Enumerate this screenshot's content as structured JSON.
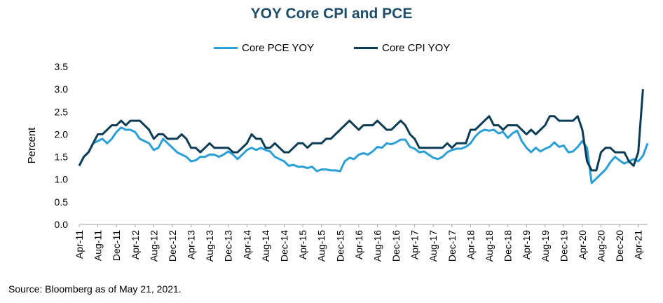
{
  "chart_data": {
    "type": "line",
    "title": "YOY Core CPI and PCE",
    "xlabel": "",
    "ylabel": "Percent",
    "ylim": [
      0.0,
      3.5
    ],
    "yticks": [
      "0.0",
      "0.5",
      "1.0",
      "1.5",
      "2.0",
      "2.5",
      "3.0",
      "3.5"
    ],
    "xtick_labels": [
      "Apr-11",
      "Aug-11",
      "Dec-11",
      "Apr-12",
      "Aug-12",
      "Dec-12",
      "Apr-13",
      "Aug-13",
      "Dec-13",
      "Apr-14",
      "Aug-14",
      "Dec-14",
      "Apr-15",
      "Aug-15",
      "Dec-15",
      "Apr-16",
      "Aug-16",
      "Dec-16",
      "Apr-17",
      "Aug-17",
      "Dec-17",
      "Apr-18",
      "Aug-18",
      "Dec-18",
      "Apr-19",
      "Aug-19",
      "Dec-19",
      "Apr-20",
      "Aug-20",
      "Dec-20",
      "Apr-21"
    ],
    "x_start": "Apr-11",
    "x_end": "Apr-21",
    "legend_position": "top-center",
    "grid": false,
    "series": [
      {
        "name": "Core PCE YOY",
        "color": "#2a9fd6",
        "values": [
          1.3,
          1.5,
          1.6,
          1.8,
          1.85,
          1.9,
          1.8,
          1.9,
          2.05,
          2.15,
          2.1,
          2.1,
          2.05,
          1.9,
          1.85,
          1.8,
          1.65,
          1.7,
          1.9,
          1.8,
          1.7,
          1.6,
          1.55,
          1.5,
          1.4,
          1.42,
          1.5,
          1.5,
          1.55,
          1.55,
          1.5,
          1.55,
          1.62,
          1.55,
          1.45,
          1.55,
          1.65,
          1.7,
          1.65,
          1.7,
          1.65,
          1.62,
          1.5,
          1.45,
          1.4,
          1.3,
          1.32,
          1.28,
          1.28,
          1.25,
          1.28,
          1.18,
          1.22,
          1.22,
          1.2,
          1.2,
          1.18,
          1.4,
          1.48,
          1.45,
          1.55,
          1.58,
          1.55,
          1.62,
          1.72,
          1.7,
          1.8,
          1.78,
          1.82,
          1.88,
          1.88,
          1.72,
          1.68,
          1.6,
          1.62,
          1.55,
          1.48,
          1.45,
          1.5,
          1.6,
          1.65,
          1.68,
          1.68,
          1.72,
          1.8,
          1.95,
          2.05,
          2.1,
          2.08,
          2.1,
          2.02,
          2.05,
          1.92,
          2.02,
          2.08,
          1.85,
          1.7,
          1.6,
          1.7,
          1.62,
          1.68,
          1.72,
          1.82,
          1.72,
          1.75,
          1.6,
          1.62,
          1.72,
          1.85,
          1.7,
          0.92,
          1.02,
          1.12,
          1.22,
          1.38,
          1.5,
          1.42,
          1.35,
          1.4,
          1.45,
          1.4,
          1.52,
          1.8
        ]
      },
      {
        "name": "Core CPI YOY",
        "color": "#0c3c54",
        "values": [
          1.3,
          1.5,
          1.6,
          1.8,
          2.0,
          2.0,
          2.1,
          2.2,
          2.2,
          2.3,
          2.2,
          2.3,
          2.3,
          2.3,
          2.2,
          2.1,
          1.9,
          2.0,
          2.0,
          1.9,
          1.9,
          1.9,
          2.0,
          1.9,
          1.7,
          1.7,
          1.6,
          1.7,
          1.8,
          1.7,
          1.7,
          1.7,
          1.7,
          1.6,
          1.6,
          1.7,
          1.8,
          2.0,
          1.9,
          1.9,
          1.7,
          1.7,
          1.8,
          1.7,
          1.6,
          1.6,
          1.7,
          1.8,
          1.8,
          1.7,
          1.8,
          1.8,
          1.8,
          1.9,
          1.9,
          2.0,
          2.1,
          2.2,
          2.3,
          2.2,
          2.1,
          2.2,
          2.2,
          2.2,
          2.3,
          2.2,
          2.1,
          2.1,
          2.2,
          2.3,
          2.2,
          2.0,
          1.9,
          1.7,
          1.7,
          1.7,
          1.7,
          1.7,
          1.7,
          1.8,
          1.7,
          1.8,
          1.8,
          1.8,
          2.1,
          2.1,
          2.2,
          2.3,
          2.4,
          2.2,
          2.2,
          2.1,
          2.2,
          2.2,
          2.2,
          2.1,
          2.0,
          2.1,
          2.0,
          2.1,
          2.2,
          2.4,
          2.4,
          2.3,
          2.3,
          2.3,
          2.3,
          2.4,
          2.1,
          1.4,
          1.2,
          1.2,
          1.6,
          1.7,
          1.7,
          1.6,
          1.6,
          1.6,
          1.4,
          1.3,
          1.6,
          3.0
        ]
      }
    ]
  },
  "source_note": "Source: Bloomberg as of May 21, 2021."
}
